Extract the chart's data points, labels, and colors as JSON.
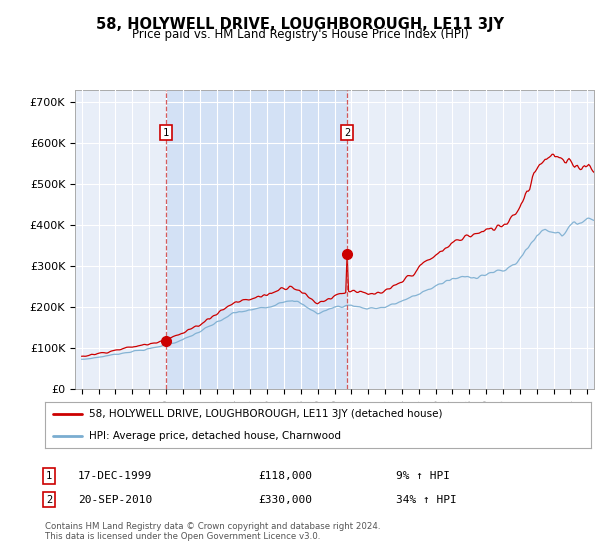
{
  "title": "58, HOLYWELL DRIVE, LOUGHBOROUGH, LE11 3JY",
  "subtitle": "Price paid vs. HM Land Registry's House Price Index (HPI)",
  "legend_line1": "58, HOLYWELL DRIVE, LOUGHBOROUGH, LE11 3JY (detached house)",
  "legend_line2": "HPI: Average price, detached house, Charnwood",
  "purchase1_date": "17-DEC-1999",
  "purchase1_price": 118000,
  "purchase1_hpi": "9% ↑ HPI",
  "purchase1_year": 2000.0,
  "purchase2_date": "20-SEP-2010",
  "purchase2_price": 330000,
  "purchase2_hpi": "34% ↑ HPI",
  "purchase2_year": 2010.75,
  "ylabel_ticks": [
    "£0",
    "£100K",
    "£200K",
    "£300K",
    "£400K",
    "£500K",
    "£600K",
    "£700K"
  ],
  "ytick_vals": [
    0,
    100000,
    200000,
    300000,
    400000,
    500000,
    600000,
    700000
  ],
  "ylim": [
    0,
    730000
  ],
  "xlim_start": 1994.6,
  "xlim_end": 2025.4,
  "plot_bg_color": "#E8EEF8",
  "grid_color": "#FFFFFF",
  "line_color_red": "#CC0000",
  "line_color_blue": "#7AADD0",
  "shade_color": "#D0DFF5",
  "footnote": "Contains HM Land Registry data © Crown copyright and database right 2024.\nThis data is licensed under the Open Government Licence v3.0."
}
